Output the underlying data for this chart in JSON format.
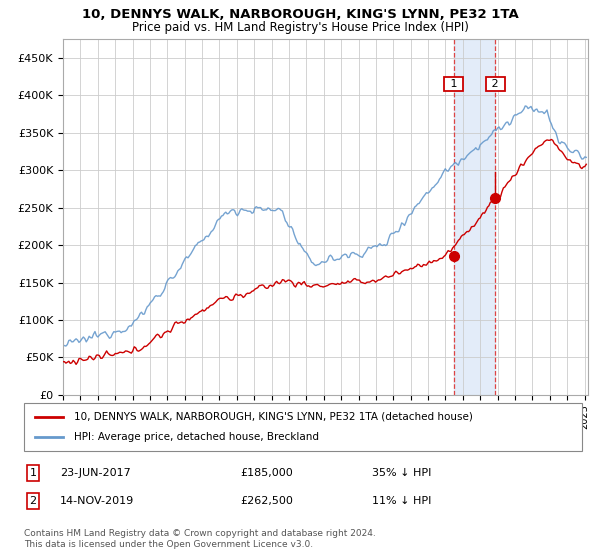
{
  "title": "10, DENNYS WALK, NARBOROUGH, KING'S LYNN, PE32 1TA",
  "subtitle": "Price paid vs. HM Land Registry's House Price Index (HPI)",
  "ylim": [
    0,
    475000
  ],
  "yticks": [
    0,
    50000,
    100000,
    150000,
    200000,
    250000,
    300000,
    350000,
    400000,
    450000
  ],
  "ytick_labels": [
    "£0",
    "£50K",
    "£100K",
    "£150K",
    "£200K",
    "£250K",
    "£300K",
    "£350K",
    "£400K",
    "£450K"
  ],
  "hpi_color": "#6699cc",
  "price_color": "#cc0000",
  "sale1_date": "23-JUN-2017",
  "sale1_price": 185000,
  "sale1_label": "1",
  "sale1_year": 2017.47,
  "sale2_date": "14-NOV-2019",
  "sale2_price": 262500,
  "sale2_label": "2",
  "sale2_year": 2019.87,
  "legend_property": "10, DENNYS WALK, NARBOROUGH, KING'S LYNN, PE32 1TA (detached house)",
  "legend_hpi": "HPI: Average price, detached house, Breckland",
  "footnote": "Contains HM Land Registry data © Crown copyright and database right 2024.\nThis data is licensed under the Open Government Licence v3.0.",
  "plot_bg": "#ffffff",
  "shade_color": "#dce8f8",
  "shade_alpha": 0.8
}
